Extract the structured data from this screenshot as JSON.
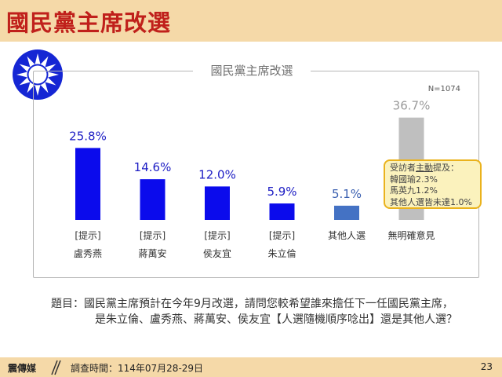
{
  "header": {
    "title": "國民黨主席改選"
  },
  "emblem": {
    "icon": "kmt-white-sun-blue-sky-emblem"
  },
  "chart_data": {
    "type": "bar",
    "title": "國民黨主席改選",
    "sample_note": "N=1074",
    "ylim": [
      0,
      40
    ],
    "grid": false,
    "legend": "none",
    "categories": [
      {
        "line1": "[提示]",
        "line2": "盧秀燕"
      },
      {
        "line1": "[提示]",
        "line2": "蔣萬安"
      },
      {
        "line1": "[提示]",
        "line2": "侯友宜"
      },
      {
        "line1": "[提示]",
        "line2": "朱立倫"
      },
      {
        "line1": "其他人選",
        "line2": ""
      },
      {
        "line1": "無明確意見",
        "line2": ""
      }
    ],
    "values": [
      25.8,
      14.6,
      12.0,
      5.9,
      5.1,
      36.7
    ],
    "value_labels": [
      "25.8%",
      "14.6%",
      "12.0%",
      "5.9%",
      "5.1%",
      "36.7%"
    ],
    "colors": [
      "#0b0bec",
      "#0b0bec",
      "#0b0bec",
      "#0b0bec",
      "#4472c4",
      "#bfbfbf"
    ],
    "label_colors": [
      "#1d1dc4",
      "#1d1dc4",
      "#1d1dc4",
      "#1d1dc4",
      "#3a5fb0",
      "#9a9a9a"
    ]
  },
  "note": {
    "prefix": "受訪者",
    "underlined": "主動",
    "suffix": "提及：",
    "lines": [
      "韓國瑜2.3%",
      "馬英九1.2%",
      "其他人選皆未達1.0%"
    ]
  },
  "question": {
    "line1": "題目：國民黨主席預計在今年9月改選，請問您較希望誰來擔任下一任國民黨主席，",
    "line2": "是朱立倫、盧秀燕、蔣萬安、侯友宜【人選隨機順序唸出】還是其他人選？"
  },
  "footer": {
    "source": "震傳媒",
    "survey_period": "調查時間：114年07月28-29日",
    "page_number": "23"
  }
}
